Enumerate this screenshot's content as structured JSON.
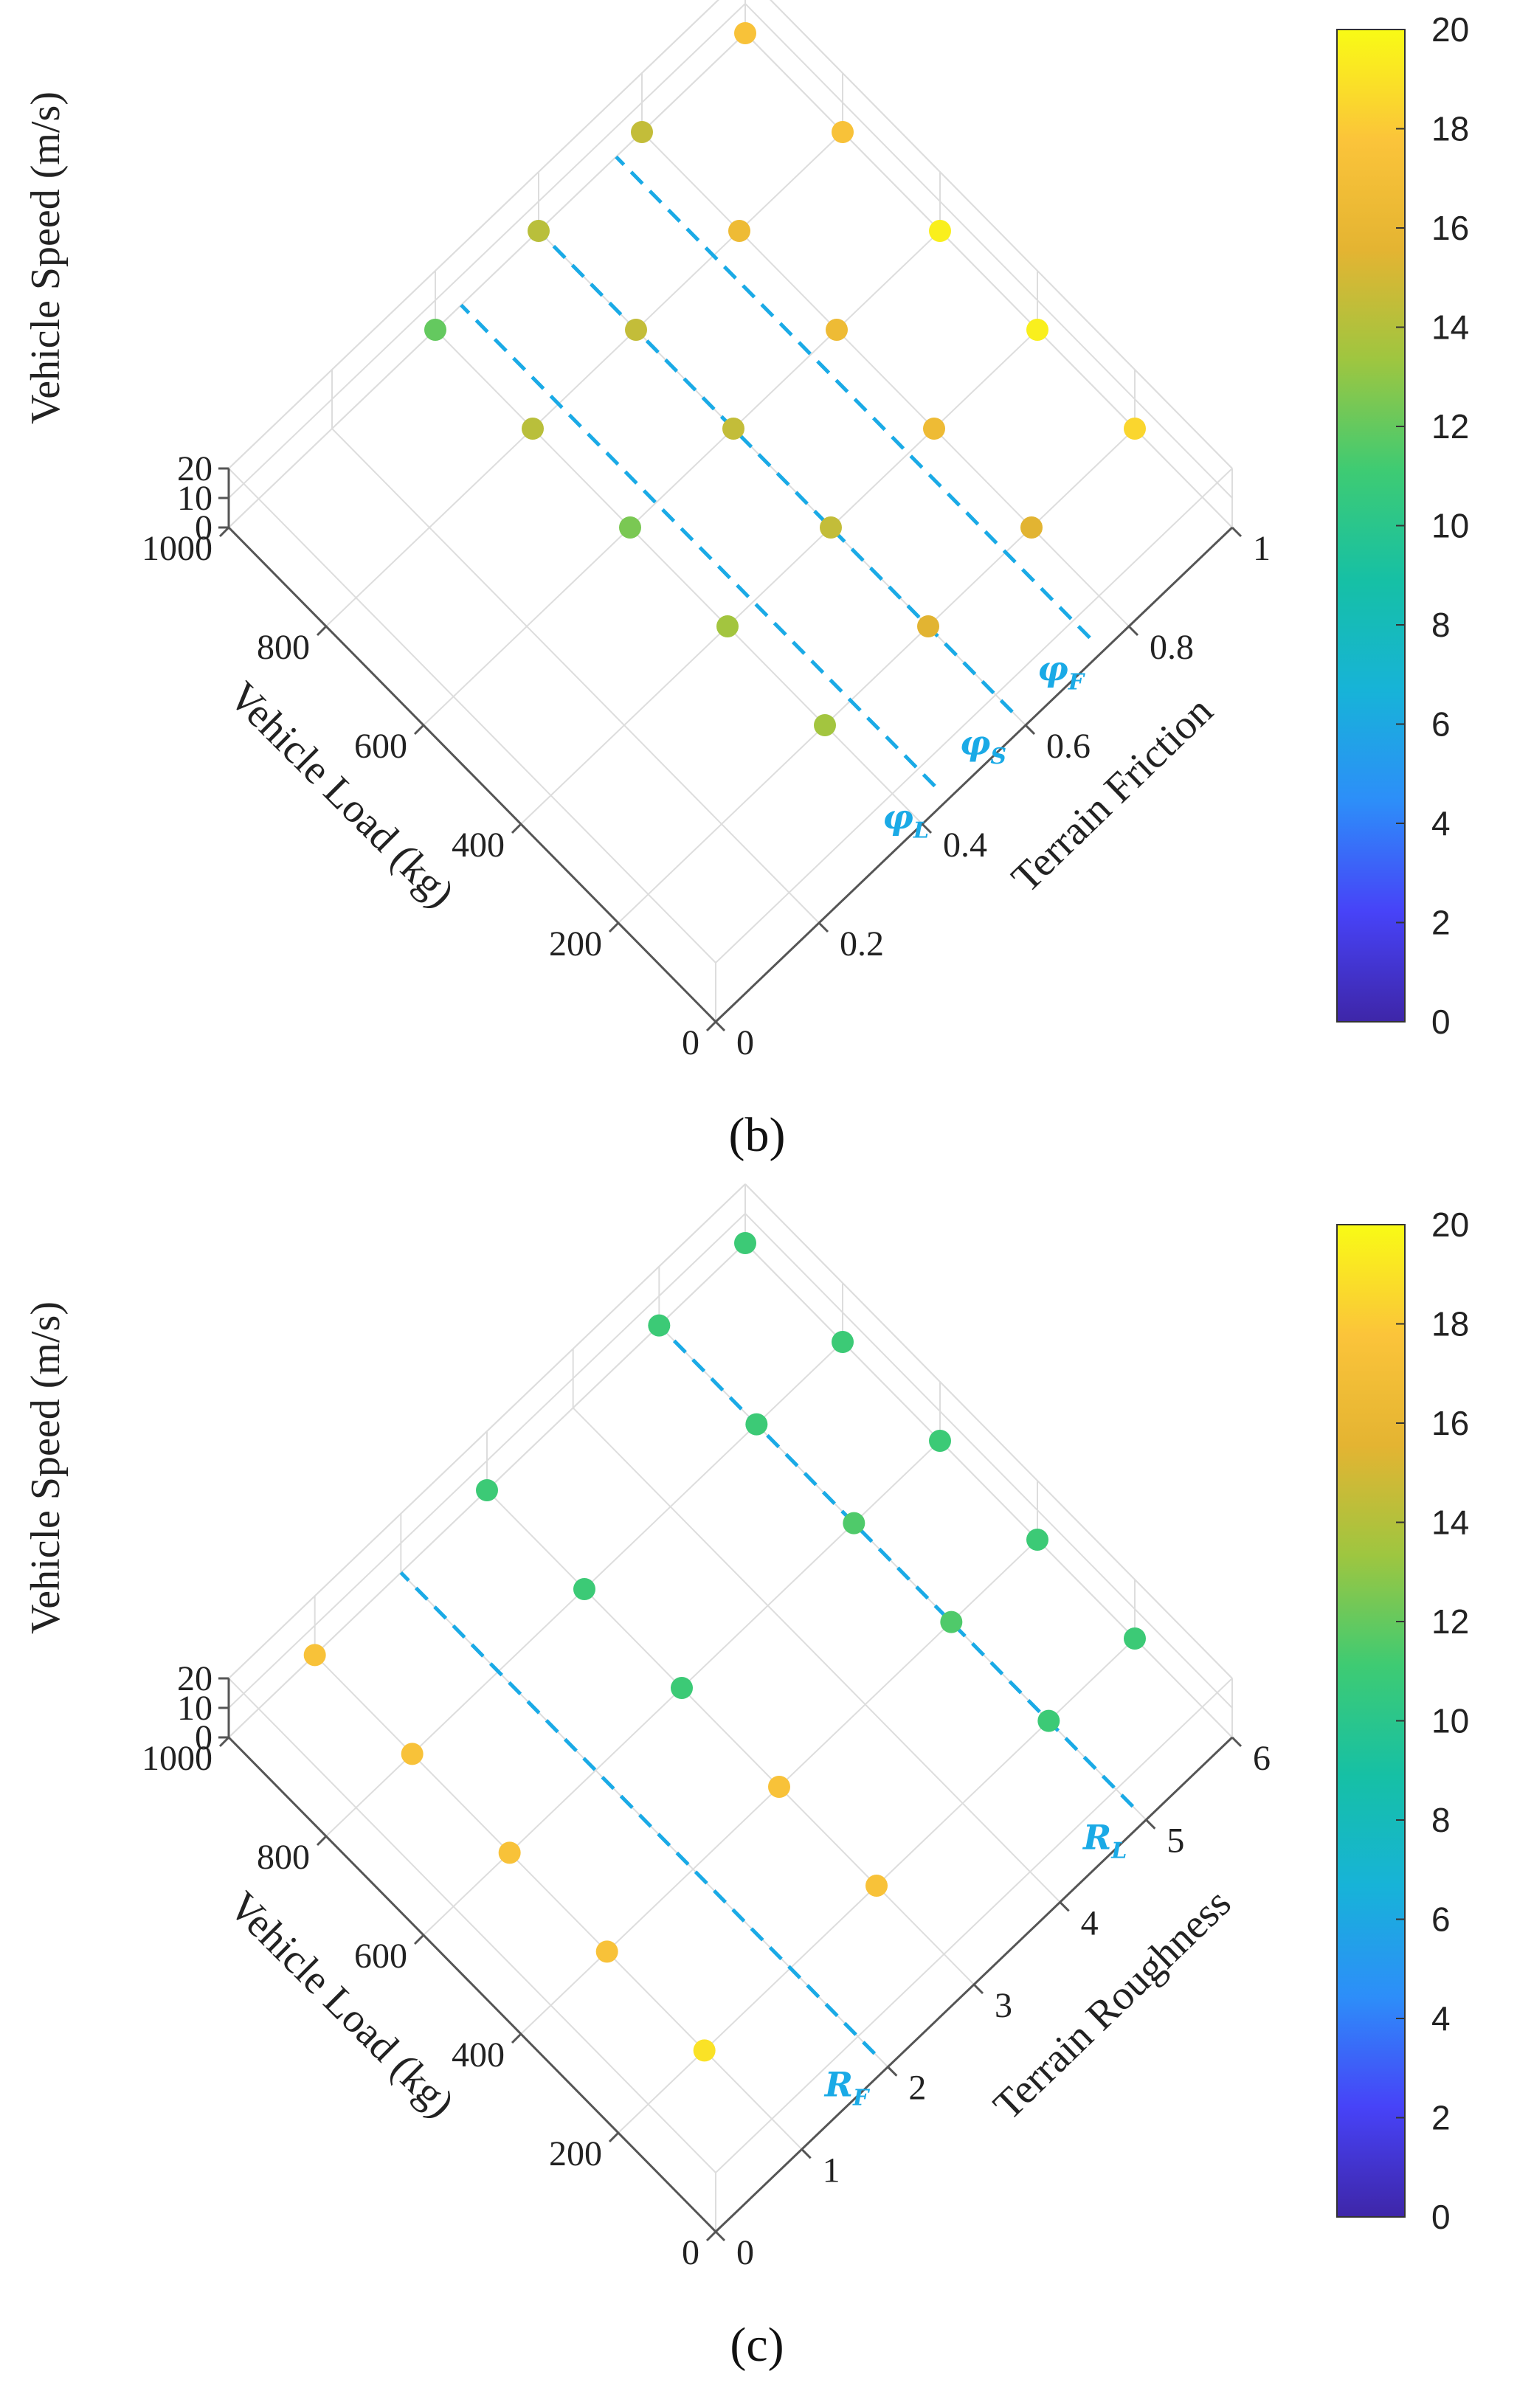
{
  "colors": {
    "dashed_line": "#1aaae6",
    "annotation": "#1aaae6",
    "axis": "#555555",
    "grid": "#dddddd",
    "colormap": [
      "#3e26a8",
      "#4743f8",
      "#2d8ef9",
      "#17b3d8",
      "#16c0a5",
      "#3ecb73",
      "#9ec640",
      "#e4b432",
      "#fbc43a",
      "#f9fb15"
    ]
  },
  "chart_data": [
    {
      "type": "scatter3d",
      "panel_label": "(b)",
      "xlabel": "Vehicle Load (kg)",
      "ylabel": "Terrain Friction",
      "zlabel": "Vehicle Speed (m/s)",
      "xlim": [
        0,
        1000
      ],
      "ylim": [
        0,
        1
      ],
      "zlim": [
        0,
        20
      ],
      "x_ticks": [
        "0",
        "200",
        "400",
        "600",
        "800",
        "1000"
      ],
      "y_ticks": [
        "0",
        "0.2",
        "0.4",
        "0.6",
        "0.8",
        "1"
      ],
      "z_ticks": [
        "0",
        "10",
        "20"
      ],
      "colorbar": {
        "min": 0,
        "max": 20,
        "ticks": [
          "0",
          "2",
          "4",
          "6",
          "8",
          "10",
          "12",
          "14",
          "16",
          "18",
          "20"
        ]
      },
      "reference_lines": [
        {
          "label": "φ",
          "subscript": "L",
          "axis_value": 0.45
        },
        {
          "label": "φ",
          "subscript": "S",
          "axis_value": 0.6
        },
        {
          "label": "φ",
          "subscript": "F",
          "axis_value": 0.75
        }
      ],
      "points": [
        {
          "x": 200,
          "y": 0.4,
          "value": 13.5
        },
        {
          "x": 400,
          "y": 0.4,
          "value": 13.5
        },
        {
          "x": 600,
          "y": 0.4,
          "value": 12.5
        },
        {
          "x": 800,
          "y": 0.4,
          "value": 14.2
        },
        {
          "x": 1000,
          "y": 0.4,
          "value": 12.0
        },
        {
          "x": 200,
          "y": 0.6,
          "value": 15.5
        },
        {
          "x": 400,
          "y": 0.6,
          "value": 14.5
        },
        {
          "x": 600,
          "y": 0.6,
          "value": 14.5
        },
        {
          "x": 800,
          "y": 0.6,
          "value": 14.5
        },
        {
          "x": 1000,
          "y": 0.6,
          "value": 14.2
        },
        {
          "x": 200,
          "y": 0.8,
          "value": 15.5
        },
        {
          "x": 400,
          "y": 0.8,
          "value": 16.5
        },
        {
          "x": 600,
          "y": 0.8,
          "value": 16.5
        },
        {
          "x": 800,
          "y": 0.8,
          "value": 16.5
        },
        {
          "x": 1000,
          "y": 0.8,
          "value": 14.5
        },
        {
          "x": 200,
          "y": 1,
          "value": 18.5
        },
        {
          "x": 400,
          "y": 1,
          "value": 19.5
        },
        {
          "x": 600,
          "y": 1,
          "value": 19.5
        },
        {
          "x": 800,
          "y": 1,
          "value": 17.5
        },
        {
          "x": 1000,
          "y": 1,
          "value": 17.5
        }
      ]
    },
    {
      "type": "scatter3d",
      "panel_label": "(c)",
      "xlabel": "Vehicle Load (kg)",
      "ylabel": "Terrain Roughness",
      "zlabel": "Vehicle Speed (m/s)",
      "xlim": [
        0,
        1000
      ],
      "ylim": [
        0,
        6
      ],
      "zlim": [
        0,
        20
      ],
      "x_ticks": [
        "0",
        "200",
        "400",
        "600",
        "800",
        "1000"
      ],
      "y_ticks": [
        "0",
        "1",
        "2",
        "3",
        "4",
        "5",
        "6"
      ],
      "z_ticks": [
        "0",
        "10",
        "20"
      ],
      "colorbar": {
        "min": 0,
        "max": 20,
        "ticks": [
          "0",
          "2",
          "4",
          "6",
          "8",
          "10",
          "12",
          "14",
          "16",
          "18",
          "20"
        ]
      },
      "reference_lines": [
        {
          "label": "R",
          "subscript": "F",
          "axis_value": 2
        },
        {
          "label": "R",
          "subscript": "L",
          "axis_value": 5
        }
      ],
      "points": [
        {
          "x": 200,
          "y": 1,
          "value": 19.0
        },
        {
          "x": 400,
          "y": 1,
          "value": 17.5
        },
        {
          "x": 600,
          "y": 1,
          "value": 17.5
        },
        {
          "x": 800,
          "y": 1,
          "value": 17.5
        },
        {
          "x": 1000,
          "y": 1,
          "value": 17.5
        },
        {
          "x": 200,
          "y": 3,
          "value": 17.5
        },
        {
          "x": 400,
          "y": 3,
          "value": 17.5
        },
        {
          "x": 600,
          "y": 3,
          "value": 11.0
        },
        {
          "x": 800,
          "y": 3,
          "value": 11.0
        },
        {
          "x": 1000,
          "y": 3,
          "value": 11.0
        },
        {
          "x": 200,
          "y": 5,
          "value": 11.0
        },
        {
          "x": 400,
          "y": 5,
          "value": 11.5
        },
        {
          "x": 600,
          "y": 5,
          "value": 11.5
        },
        {
          "x": 800,
          "y": 5,
          "value": 11.0
        },
        {
          "x": 1000,
          "y": 5,
          "value": 11.0
        },
        {
          "x": 200,
          "y": 6,
          "value": 11.0
        },
        {
          "x": 400,
          "y": 6,
          "value": 11.0
        },
        {
          "x": 600,
          "y": 6,
          "value": 11.0
        },
        {
          "x": 800,
          "y": 6,
          "value": 11.0
        },
        {
          "x": 1000,
          "y": 6,
          "value": 11.0
        }
      ]
    }
  ]
}
